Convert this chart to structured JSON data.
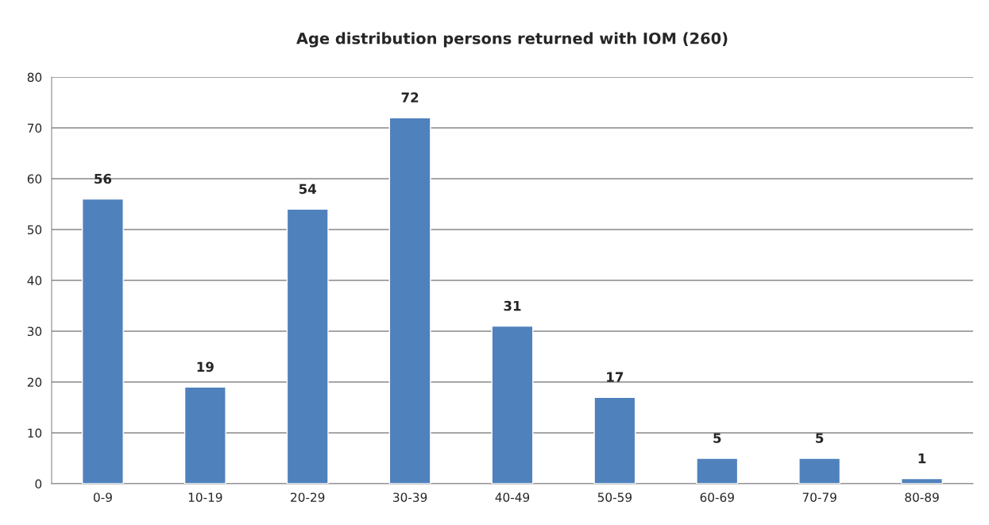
{
  "chart_data": {
    "type": "bar",
    "title": "Age distribution persons returned with IOM (260)",
    "categories": [
      "0-9",
      "10-19",
      "20-29",
      "30-39",
      "40-49",
      "50-59",
      "60-69",
      "70-79",
      "80-89"
    ],
    "values": [
      56,
      19,
      54,
      72,
      31,
      17,
      5,
      5,
      1
    ],
    "color": "#4f81bd",
    "ylim": [
      0,
      80
    ],
    "yticks": [
      0,
      10,
      20,
      30,
      40,
      50,
      60,
      70,
      80
    ],
    "grid": "y",
    "data_labels": true,
    "legend": false
  }
}
